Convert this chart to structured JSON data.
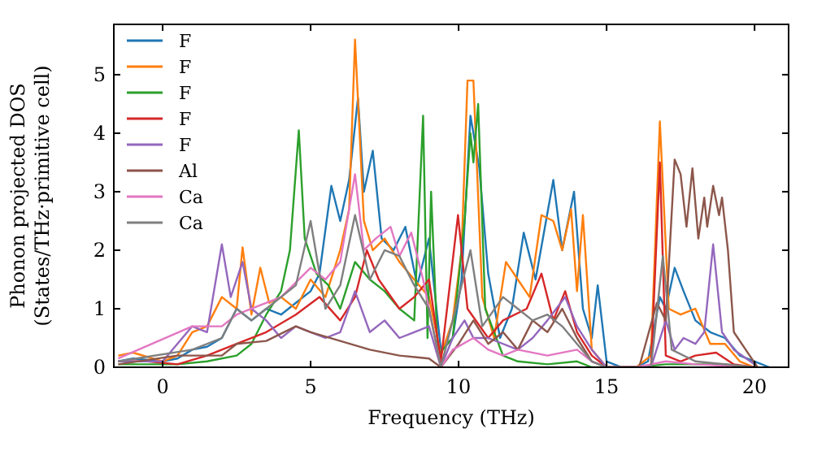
{
  "chart_data": {
    "type": "line",
    "xlabel": "Frequency (THz)",
    "ylabel": "Phonon projected DOS\n(States/THz·primitive cell)",
    "xlim": [
      -1.65,
      21.15
    ],
    "ylim": [
      0,
      5.86
    ],
    "xticks": [
      0,
      5,
      10,
      15,
      20
    ],
    "yticks": [
      0,
      1,
      2,
      3,
      4,
      5
    ],
    "grid": false,
    "legend": "top left",
    "line_style": "solid",
    "series": [
      {
        "name": "F",
        "color": "#1f77b4",
        "x": [
          -1.5,
          -1,
          0,
          0.5,
          1,
          1.5,
          2,
          2.5,
          3,
          3.5,
          4,
          4.5,
          5,
          5.3,
          5.7,
          6,
          6.3,
          6.6,
          6.8,
          7.1,
          7.4,
          7.8,
          8.2,
          8.6,
          9,
          9.4,
          9.8,
          10.1,
          10.4,
          10.7,
          11,
          11.4,
          11.8,
          12.2,
          12.6,
          13.2,
          13.5,
          13.9,
          14.2,
          14.5,
          14.7,
          15,
          15.5,
          16,
          16.4,
          16.8,
          17,
          17.3,
          17.6,
          18,
          18.5,
          19,
          19.5,
          20,
          20.5
        ],
        "values": [
          0.1,
          0.15,
          0.1,
          0.15,
          0.3,
          0.35,
          0.5,
          1.0,
          0.8,
          1.0,
          0.9,
          1.1,
          1.3,
          1.6,
          3.1,
          2.5,
          3.2,
          4.6,
          3.0,
          3.7,
          2.2,
          2.0,
          2.4,
          1.4,
          2.2,
          0.3,
          0.5,
          1.5,
          4.3,
          3.4,
          1.6,
          0.5,
          1.0,
          2.3,
          1.5,
          3.2,
          2.0,
          3.0,
          1.0,
          0.5,
          1.4,
          0.1,
          0,
          0,
          0.1,
          1.2,
          1.0,
          1.7,
          1.3,
          0.8,
          0.6,
          0.5,
          0.2,
          0.1,
          0
        ]
      },
      {
        "name": "F",
        "color": "#ff7f0e",
        "x": [
          -1.5,
          -1,
          0,
          0.5,
          1,
          1.5,
          2,
          2.5,
          2.7,
          3,
          3.3,
          3.6,
          4,
          4.5,
          5,
          5.5,
          6,
          6.3,
          6.5,
          6.8,
          7.1,
          7.5,
          8,
          8.5,
          9,
          9.4,
          9.8,
          10.1,
          10.3,
          10.5,
          10.8,
          11.2,
          11.6,
          12,
          12.4,
          12.8,
          13.2,
          13.5,
          13.8,
          14,
          14.2,
          14.5,
          15,
          16,
          16.5,
          16.8,
          17.1,
          17.5,
          18,
          18.5,
          19,
          19.5,
          20
        ],
        "values": [
          0.2,
          0.25,
          0.1,
          0.2,
          0.6,
          0.7,
          1.2,
          1.0,
          2.05,
          0.9,
          1.7,
          1.1,
          1.2,
          1.0,
          1.5,
          1.2,
          2.0,
          2.7,
          5.6,
          2.5,
          2.0,
          2.2,
          1.8,
          1.5,
          1.2,
          0.2,
          0.8,
          2.0,
          4.9,
          4.9,
          1.2,
          0.5,
          1.8,
          1.5,
          1.2,
          2.6,
          2.5,
          2.0,
          2.7,
          1.3,
          2.6,
          0.3,
          0,
          0,
          0.2,
          4.2,
          1.0,
          0.9,
          1.0,
          0.4,
          0.4,
          0.1,
          0
        ]
      },
      {
        "name": "F",
        "color": "#2ca02c",
        "x": [
          -1.5,
          -0.5,
          0.5,
          1.5,
          2.5,
          3,
          3.5,
          4,
          4.3,
          4.6,
          4.8,
          5.2,
          5.6,
          6,
          6.5,
          7,
          7.5,
          8,
          8.5,
          8.8,
          8.95,
          9.07,
          9.3,
          9.8,
          10.2,
          10.4,
          10.5,
          10.66,
          10.9,
          11.5,
          12,
          13,
          14,
          14.5,
          16,
          17,
          18,
          19,
          20
        ],
        "values": [
          0.05,
          0.05,
          0.05,
          0.1,
          0.2,
          0.4,
          0.9,
          1.3,
          2.0,
          4.05,
          2.2,
          1.6,
          1.4,
          1.0,
          1.8,
          1.5,
          1.3,
          1.0,
          0.8,
          4.3,
          0.5,
          3.0,
          0.2,
          0.5,
          2.5,
          4.0,
          3.5,
          4.5,
          1.0,
          0.2,
          0.1,
          0.05,
          0.1,
          0,
          0,
          0.05,
          0.05,
          0.05,
          0
        ]
      },
      {
        "name": "F",
        "color": "#d62728",
        "x": [
          -1.5,
          -0.5,
          0.5,
          1.5,
          2.5,
          3.5,
          4.5,
          5.3,
          6,
          6.5,
          6.9,
          7.3,
          8,
          8.5,
          9,
          9.4,
          9.98,
          10.3,
          11,
          11.5,
          12.3,
          12.8,
          13.2,
          13.6,
          14,
          14.5,
          15,
          16.5,
          16.8,
          17,
          17.5,
          18,
          18.7,
          19.3,
          20
        ],
        "values": [
          0.1,
          0.1,
          0.05,
          0.2,
          0.4,
          0.6,
          0.9,
          1.2,
          0.8,
          1.2,
          2.0,
          1.5,
          1.0,
          1.2,
          1.5,
          0.1,
          2.6,
          1.0,
          0.5,
          0.8,
          1.0,
          1.6,
          0.8,
          1.3,
          0.6,
          0.2,
          0,
          0,
          3.5,
          0.2,
          0.1,
          0.2,
          0.25,
          0.05,
          0
        ]
      },
      {
        "name": "F",
        "color": "#9467bd",
        "x": [
          -1.5,
          -0.5,
          0,
          1,
          1.5,
          2,
          2.3,
          2.7,
          3,
          3.5,
          4,
          4.5,
          5,
          5.5,
          6,
          6.5,
          7,
          7.5,
          8,
          8.5,
          9,
          9.4,
          9.8,
          10.2,
          10.5,
          11,
          12,
          12.5,
          13,
          13.6,
          14,
          14.5,
          15,
          16.5,
          17,
          17.3,
          17.6,
          18,
          18.3,
          18.6,
          18.9,
          19.3,
          20
        ],
        "values": [
          0.1,
          0.1,
          0.1,
          0.7,
          0.6,
          2.1,
          1.2,
          1.8,
          1.0,
          0.8,
          0.5,
          0.7,
          0.6,
          0.5,
          0.6,
          1.3,
          0.6,
          0.8,
          0.5,
          0.6,
          0.7,
          0,
          0.5,
          0.8,
          0.5,
          0.5,
          0.3,
          0.5,
          0.8,
          1.2,
          0.7,
          0.3,
          0,
          0,
          0.8,
          0.3,
          0.5,
          0.4,
          0.6,
          2.1,
          0.6,
          0.3,
          0.05
        ]
      },
      {
        "name": "Al",
        "color": "#8c564b",
        "x": [
          -1.5,
          0.5,
          2,
          2.5,
          3.5,
          4.5,
          5,
          6,
          7,
          8,
          9,
          9.4,
          10,
          10.5,
          11,
          11.5,
          12,
          12.5,
          13,
          13.5,
          14,
          14.5,
          15,
          16.1,
          16.7,
          17,
          17.3,
          17.5,
          17.7,
          17.9,
          18.1,
          18.3,
          18.4,
          18.6,
          18.8,
          18.9,
          19.1,
          19.3,
          19.7,
          20.1
        ],
        "values": [
          0.05,
          0.2,
          0.2,
          0.4,
          0.45,
          0.7,
          0.6,
          0.45,
          0.3,
          0.2,
          0.15,
          0,
          0.4,
          0.8,
          0.4,
          0.6,
          0.3,
          0.8,
          0.6,
          1.0,
          0.5,
          0.1,
          0,
          0,
          1.1,
          0.8,
          3.55,
          3.3,
          2.4,
          3.4,
          2.2,
          2.9,
          2.4,
          3.1,
          2.6,
          2.9,
          2.0,
          0.6,
          0.3,
          0
        ]
      },
      {
        "name": "Ca",
        "color": "#e377c2",
        "x": [
          -1.5,
          1,
          2,
          2.5,
          3,
          4,
          5,
          5.5,
          6,
          6.5,
          6.8,
          7.2,
          7.7,
          8,
          8.4,
          8.8,
          9.2,
          9.4,
          9.8,
          10.5,
          11,
          11.5,
          12,
          13,
          14,
          14.5,
          15,
          16,
          17,
          18,
          20
        ],
        "values": [
          0.15,
          0.7,
          0.7,
          0.9,
          1.0,
          1.2,
          1.7,
          1.5,
          1.8,
          3.3,
          2.0,
          2.2,
          2.4,
          1.9,
          2.3,
          1.5,
          0.5,
          0,
          0.3,
          0.5,
          0.3,
          0.2,
          0.3,
          0.2,
          0.3,
          0.1,
          0,
          0,
          0.1,
          0.05,
          0
        ]
      },
      {
        "name": "Ca",
        "color": "#7f7f7f",
        "x": [
          -1.5,
          1,
          2,
          2.5,
          3,
          3.5,
          4,
          4.5,
          5,
          5.5,
          6,
          6.5,
          7,
          7.5,
          8,
          8.5,
          9,
          9.4,
          10,
          10.4,
          10.8,
          11.5,
          12,
          12.5,
          13,
          13.5,
          14,
          14.5,
          15,
          16.5,
          16.9,
          17.2,
          18,
          20
        ],
        "values": [
          0.1,
          0.3,
          0.5,
          1.0,
          0.8,
          1.0,
          1.2,
          1.4,
          2.5,
          1.0,
          1.4,
          2.6,
          1.5,
          2.0,
          1.9,
          1.4,
          1.0,
          0,
          1.2,
          2.0,
          0.7,
          1.2,
          1.0,
          0.8,
          0.9,
          0.7,
          0.4,
          0.1,
          0,
          0,
          1.9,
          0.3,
          0.1,
          0
        ]
      }
    ]
  }
}
